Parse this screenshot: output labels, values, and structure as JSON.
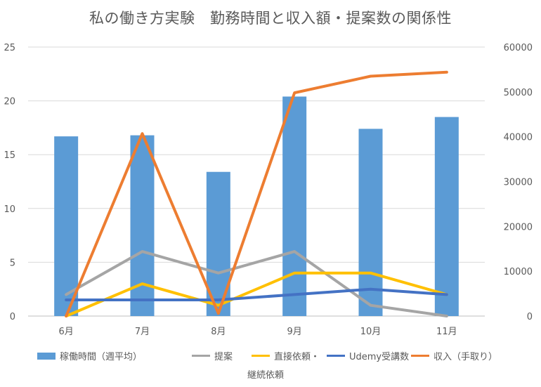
{
  "chart_data": {
    "type": "bar",
    "title": "私の働き方実験　勤務時間と収入額・提案数の関係性",
    "categories": [
      "6月",
      "7月",
      "8月",
      "9月",
      "10月",
      "11月"
    ],
    "y_left": {
      "ylim": [
        0,
        25
      ],
      "ticks": [
        "0",
        "5",
        "10",
        "15",
        "20",
        "25"
      ]
    },
    "y_right": {
      "ylim": [
        0,
        60000
      ],
      "ticks": [
        "0",
        "10000",
        "20000",
        "30000",
        "40000",
        "50000",
        "60000"
      ]
    },
    "grid": true,
    "legend_position": "bottom",
    "series": [
      {
        "name": "稼働時間（週平均）",
        "type": "bar",
        "axis": "left",
        "color": "#5B9BD5",
        "values": [
          16.7,
          16.8,
          13.4,
          20.4,
          17.4,
          18.5
        ]
      },
      {
        "name": "提案",
        "type": "line",
        "axis": "left",
        "color": "#A5A5A5",
        "values": [
          2,
          6,
          4,
          6,
          1,
          0
        ]
      },
      {
        "name": "直接依頼・継続依頼",
        "type": "line",
        "axis": "left",
        "color": "#FFC000",
        "values": [
          0,
          3,
          1,
          4,
          4,
          2
        ]
      },
      {
        "name": "Udemy受講数",
        "type": "line",
        "axis": "left",
        "color": "#4472C4",
        "values": [
          1.5,
          1.5,
          1.5,
          2,
          2.5,
          2
        ]
      },
      {
        "name": "収入（手取り）",
        "type": "line",
        "axis": "right",
        "color": "#ED7D31",
        "values": [
          0,
          40700,
          600,
          49800,
          53500,
          54400
        ]
      }
    ]
  },
  "legend": {
    "bar_label": "稼働時間（週平均）",
    "teian_label": "提案",
    "irai_label_1": "直接依頼・",
    "irai_label_2": "継続依頼",
    "udemy_label": "Udemy受講数",
    "income_label": "収入（手取り）"
  }
}
